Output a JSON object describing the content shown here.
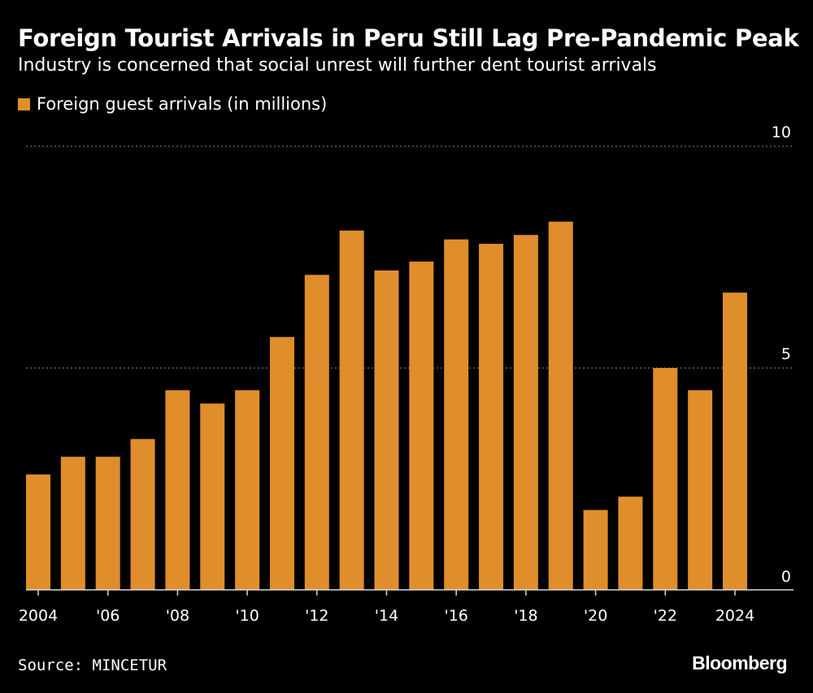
{
  "header": {
    "title": "Foreign Tourist Arrivals in Peru Still Lag Pre-Pandemic Peak",
    "subtitle": "Industry is concerned that social unrest will further dent tourist arrivals"
  },
  "footer": {
    "source": "Source: MINCETUR",
    "brand": "Bloomberg"
  },
  "colors": {
    "background": "#000000",
    "bar": "#e08e2b",
    "text": "#ffffff",
    "grid": "#8a8a8a"
  },
  "chart_data": {
    "type": "bar",
    "title": "Foreign Tourist Arrivals in Peru Still Lag Pre-Pandemic Peak",
    "subtitle": "Industry is concerned that social unrest will further dent tourist arrivals",
    "xlabel": "",
    "ylabel": "",
    "ylim": [
      0,
      10
    ],
    "yticks": [
      0,
      5,
      10
    ],
    "grid": true,
    "legend_position": "top-left",
    "categories": [
      "2004",
      "2005",
      "2006",
      "2007",
      "2008",
      "2009",
      "2010",
      "2011",
      "2012",
      "2013",
      "2014",
      "2015",
      "2016",
      "2017",
      "2018",
      "2019",
      "2020",
      "2021",
      "2022",
      "2023",
      "2024"
    ],
    "xtick_labels": [
      {
        "category": "2004",
        "label": "2004"
      },
      {
        "category": "2006",
        "label": "'06"
      },
      {
        "category": "2008",
        "label": "'08"
      },
      {
        "category": "2010",
        "label": "'10"
      },
      {
        "category": "2012",
        "label": "'12"
      },
      {
        "category": "2014",
        "label": "'14"
      },
      {
        "category": "2016",
        "label": "'16"
      },
      {
        "category": "2018",
        "label": "'18"
      },
      {
        "category": "2020",
        "label": "'20"
      },
      {
        "category": "2022",
        "label": "'22"
      },
      {
        "category": "2024",
        "label": "2024"
      }
    ],
    "series": [
      {
        "name": "Foreign guest arrivals (in millions)",
        "values": [
          2.6,
          3.0,
          3.0,
          3.4,
          4.5,
          4.2,
          4.5,
          5.7,
          7.1,
          8.1,
          7.2,
          7.4,
          7.9,
          7.8,
          8.0,
          8.3,
          1.8,
          2.1,
          5.0,
          4.5,
          6.7
        ]
      }
    ]
  }
}
